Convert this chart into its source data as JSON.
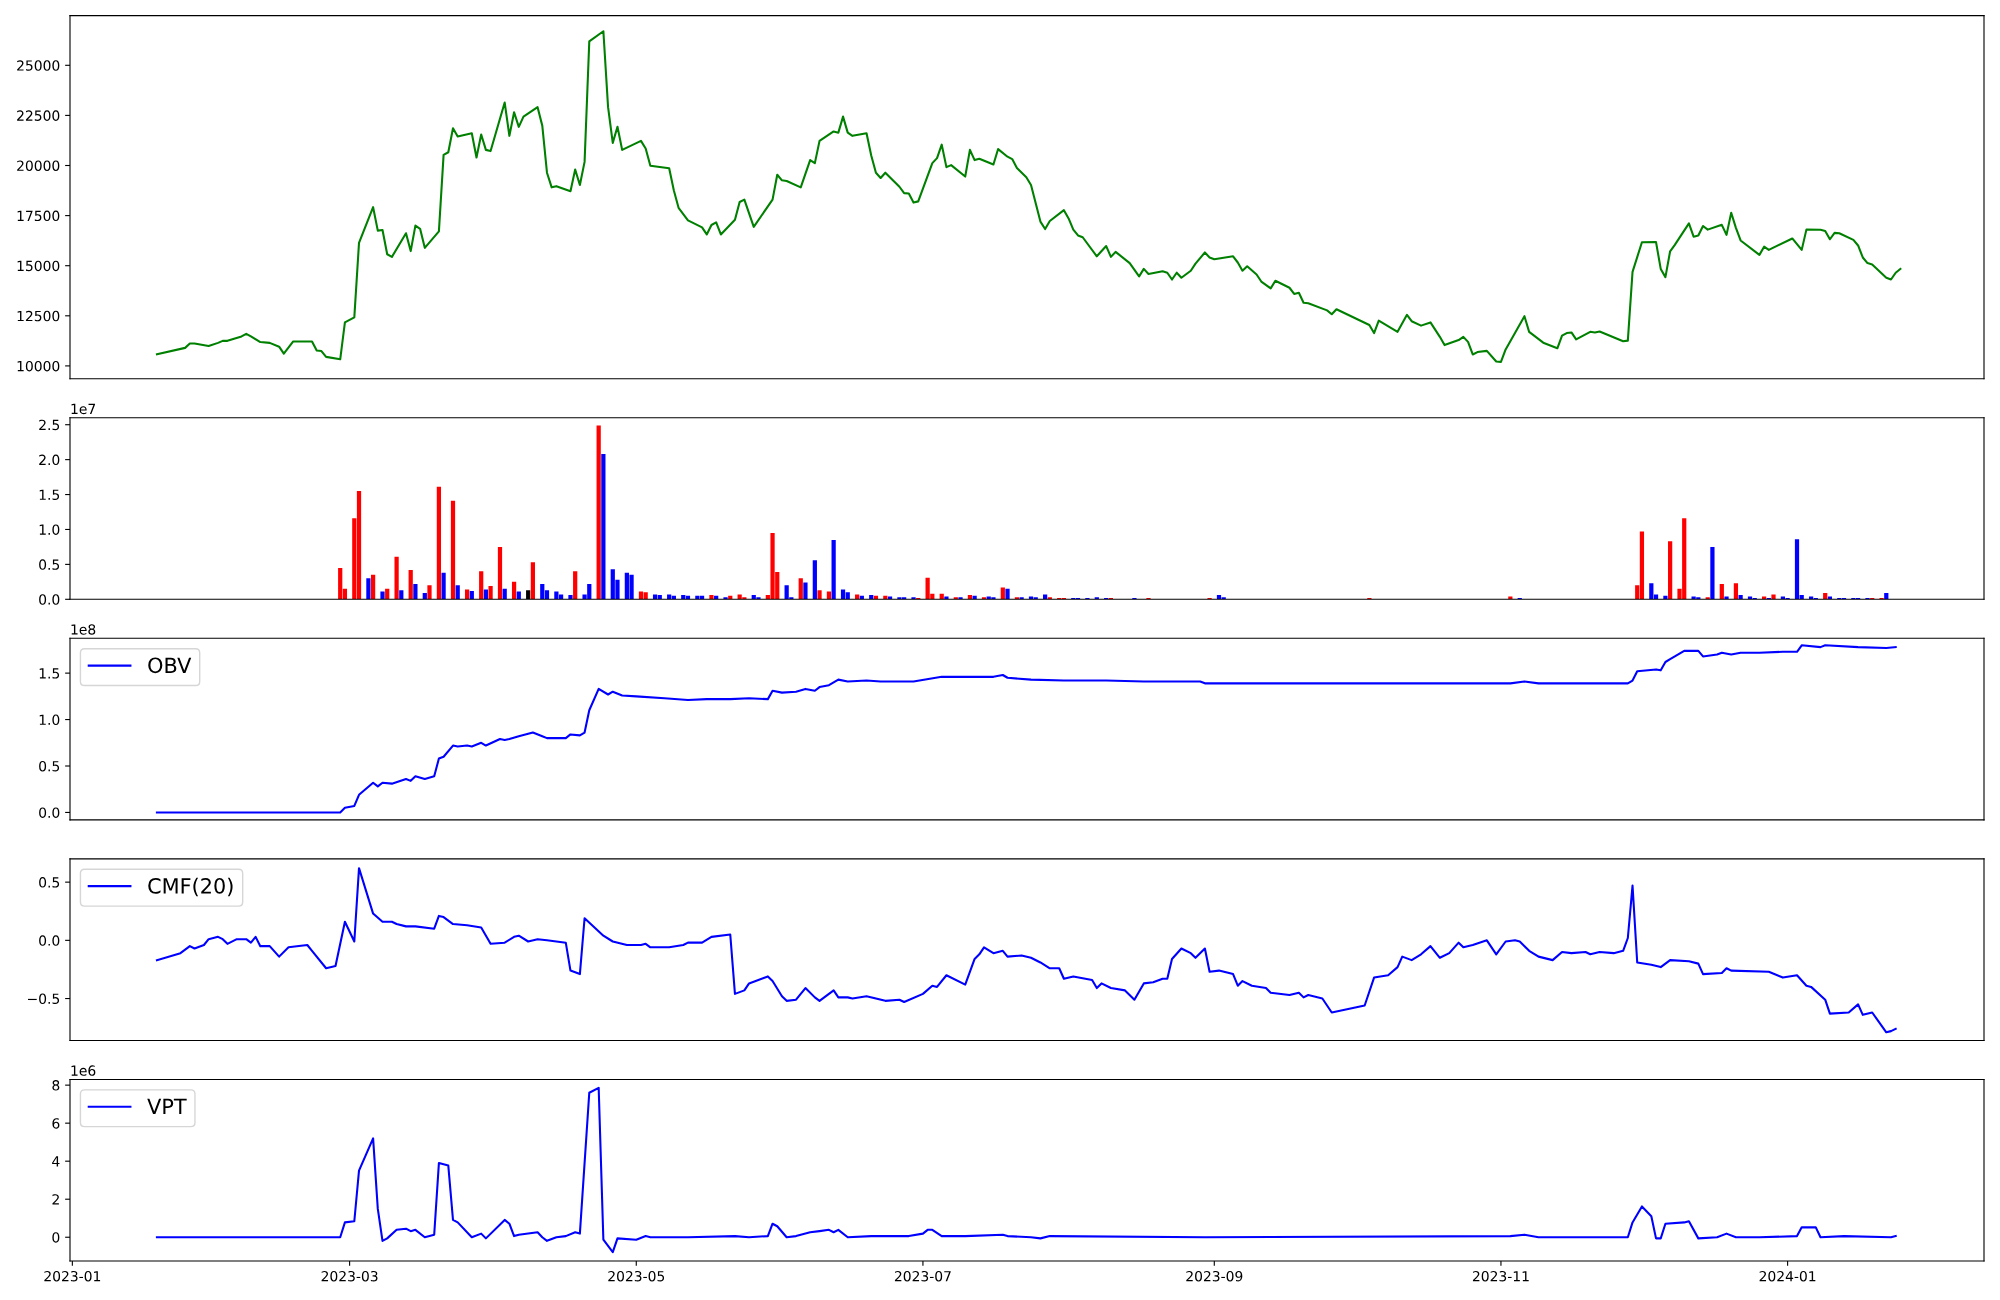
{
  "chart_data": [
    {
      "type": "line",
      "xlim": [
        "2022-12-31T12:00",
        "2024-02-11T19:00"
      ],
      "ylim": [
        9360,
        27480
      ],
      "tick_labels": "y",
      "legend": false,
      "yticks": [
        10000,
        12500,
        15000,
        17500,
        20000,
        22500,
        25000
      ],
      "color": "#008000",
      "x": [
        "2023-01-19",
        "2023-01-25",
        "2023-01-26",
        "2023-01-27",
        "2023-01-30",
        "2023-02-01",
        "2023-02-02",
        "2023-02-03",
        "2023-02-06",
        "2023-02-07",
        "2023-02-08",
        "2023-02-10",
        "2023-02-12",
        "2023-02-14",
        "2023-02-15",
        "2023-02-17",
        "2023-02-21",
        "2023-02-22",
        "2023-02-23",
        "2023-02-24",
        "2023-02-27",
        "2023-02-28",
        "2023-03-02",
        "2023-03-03",
        "2023-03-06",
        "2023-03-07",
        "2023-03-08",
        "2023-03-09",
        "2023-03-10",
        "2023-03-13",
        "2023-03-14",
        "2023-03-15",
        "2023-03-16",
        "2023-03-17",
        "2023-03-20",
        "2023-03-21",
        "2023-03-22",
        "2023-03-23",
        "2023-03-24",
        "2023-03-27",
        "2023-03-28",
        "2023-03-29",
        "2023-03-30",
        "2023-03-31",
        "2023-04-03",
        "2023-04-04",
        "2023-04-05",
        "2023-04-06",
        "2023-04-07",
        "2023-04-10",
        "2023-04-11",
        "2023-04-12",
        "2023-04-13",
        "2023-04-14",
        "2023-04-17",
        "2023-04-18",
        "2023-04-19",
        "2023-04-20",
        "2023-04-21",
        "2023-04-24",
        "2023-04-25",
        "2023-04-26",
        "2023-04-27",
        "2023-04-28",
        "2023-05-02",
        "2023-05-03",
        "2023-05-04",
        "2023-05-08",
        "2023-05-09",
        "2023-05-10",
        "2023-05-12",
        "2023-05-15",
        "2023-05-16",
        "2023-05-17",
        "2023-05-18",
        "2023-05-19",
        "2023-05-22",
        "2023-05-23",
        "2023-05-24",
        "2023-05-26",
        "2023-05-30",
        "2023-05-31",
        "2023-06-01",
        "2023-06-02",
        "2023-06-05",
        "2023-06-07",
        "2023-06-08",
        "2023-06-09",
        "2023-06-12",
        "2023-06-13",
        "2023-06-14",
        "2023-06-15",
        "2023-06-16",
        "2023-06-19",
        "2023-06-20",
        "2023-06-21",
        "2023-06-22",
        "2023-06-23",
        "2023-06-26",
        "2023-06-27",
        "2023-06-28",
        "2023-06-29",
        "2023-06-30",
        "2023-07-03",
        "2023-07-04",
        "2023-07-05",
        "2023-07-06",
        "2023-07-07",
        "2023-07-10",
        "2023-07-11",
        "2023-07-12",
        "2023-07-13",
        "2023-07-16",
        "2023-07-17",
        "2023-07-19",
        "2023-07-20",
        "2023-07-21",
        "2023-07-23",
        "2023-07-24",
        "2023-07-26",
        "2023-07-27",
        "2023-07-28",
        "2023-07-31",
        "2023-08-01",
        "2023-08-02",
        "2023-08-03",
        "2023-08-04",
        "2023-08-07",
        "2023-08-09",
        "2023-08-10",
        "2023-08-11",
        "2023-08-14",
        "2023-08-16",
        "2023-08-17",
        "2023-08-18",
        "2023-08-21",
        "2023-08-22",
        "2023-08-23",
        "2023-08-24",
        "2023-08-25",
        "2023-08-27",
        "2023-08-28",
        "2023-08-30",
        "2023-08-31",
        "2023-09-01",
        "2023-09-05",
        "2023-09-06",
        "2023-09-07",
        "2023-09-08",
        "2023-09-10",
        "2023-09-11",
        "2023-09-13",
        "2023-09-14",
        "2023-09-17",
        "2023-09-18",
        "2023-09-19",
        "2023-09-20",
        "2023-09-21",
        "2023-09-25",
        "2023-09-26",
        "2023-09-27",
        "2023-10-04",
        "2023-10-05",
        "2023-10-06",
        "2023-10-10",
        "2023-10-12",
        "2023-10-13",
        "2023-10-15",
        "2023-10-17",
        "2023-10-19",
        "2023-10-20",
        "2023-10-23",
        "2023-10-24",
        "2023-10-25",
        "2023-10-26",
        "2023-10-27",
        "2023-10-29",
        "2023-10-31",
        "2023-11-01",
        "2023-11-02",
        "2023-11-06",
        "2023-11-07",
        "2023-11-10",
        "2023-11-13",
        "2023-11-14",
        "2023-11-15",
        "2023-11-16",
        "2023-11-17",
        "2023-11-20",
        "2023-11-21",
        "2023-11-22",
        "2023-11-27",
        "2023-11-28",
        "2023-11-29",
        "2023-12-01",
        "2023-12-04",
        "2023-12-05",
        "2023-12-06",
        "2023-12-07",
        "2023-12-08",
        "2023-12-11",
        "2023-12-12",
        "2023-12-13",
        "2023-12-14",
        "2023-12-15",
        "2023-12-18",
        "2023-12-19",
        "2023-12-20",
        "2023-12-21",
        "2023-12-22",
        "2023-12-26",
        "2023-12-27",
        "2023-12-28",
        "2024-01-02",
        "2024-01-04",
        "2024-01-05",
        "2024-01-08",
        "2024-01-09",
        "2024-01-10",
        "2024-01-11",
        "2024-01-12",
        "2024-01-15",
        "2024-01-16",
        "2024-01-17",
        "2024-01-18",
        "2024-01-19",
        "2024-01-22",
        "2024-01-23",
        "2024-01-24",
        "2024-01-25"
      ],
      "values": [
        10580,
        10900,
        11120,
        11120,
        10990,
        11150,
        11250,
        11250,
        11470,
        11600,
        11470,
        11190,
        11150,
        10960,
        10610,
        11220,
        11220,
        10770,
        10740,
        10450,
        10330,
        12170,
        12420,
        16140,
        17920,
        16750,
        16780,
        15570,
        15440,
        16620,
        15730,
        17000,
        16840,
        15890,
        16710,
        20530,
        20660,
        21860,
        21450,
        21610,
        20400,
        21550,
        20780,
        20720,
        23140,
        21480,
        22660,
        21930,
        22440,
        22910,
        21990,
        19640,
        18910,
        18970,
        18720,
        19800,
        19030,
        20180,
        26190,
        26700,
        22910,
        21130,
        21930,
        20780,
        21230,
        20850,
        19990,
        19860,
        18750,
        17890,
        17260,
        16910,
        16560,
        17030,
        17160,
        16560,
        17290,
        18180,
        18300,
        16940,
        18300,
        19540,
        19260,
        19230,
        18910,
        20270,
        20120,
        21230,
        21700,
        21640,
        22440,
        21640,
        21480,
        21610,
        20500,
        19640,
        19380,
        19640,
        18940,
        18620,
        18600,
        18150,
        18210,
        20120,
        20370,
        21040,
        19920,
        20020,
        19450,
        20780,
        20270,
        20340,
        20050,
        20820,
        20440,
        20320,
        19880,
        19410,
        19030,
        17200,
        16830,
        17230,
        17770,
        17360,
        16800,
        16510,
        16420,
        15470,
        15980,
        15440,
        15690,
        15130,
        14470,
        14840,
        14590,
        14720,
        14650,
        14310,
        14650,
        14400,
        14750,
        15100,
        15660,
        15410,
        15320,
        15470,
        15160,
        14750,
        14970,
        14560,
        14210,
        13870,
        14250,
        13900,
        13590,
        13650,
        13150,
        13130,
        12770,
        12580,
        12830,
        12040,
        11640,
        12260,
        11700,
        12550,
        12230,
        12010,
        12170,
        11450,
        11040,
        11290,
        11450,
        11200,
        10570,
        10690,
        10750,
        10220,
        10200,
        10820,
        12480,
        11700,
        11160,
        10880,
        11510,
        11640,
        11670,
        11320,
        11700,
        11670,
        11720,
        11230,
        11260,
        14690,
        16170,
        16180,
        14840,
        14430,
        15720,
        16040,
        17110,
        16450,
        16510,
        16980,
        16800,
        17040,
        16540,
        17640,
        16890,
        16260,
        15540,
        15950,
        15790,
        16360,
        15790,
        16800,
        16790,
        16730,
        16320,
        16640,
        16620,
        16290,
        16010,
        15410,
        15130,
        15060,
        14400,
        14310,
        14650,
        14840
      ]
    },
    {
      "type": "bar",
      "xlim": [
        "2022-12-31T12:00",
        "2024-02-11T19:00"
      ],
      "ylim": [
        0,
        2.6
      ],
      "tick_labels": "y",
      "legend": false,
      "yticks": [
        {
          "value": 0,
          "label": "0.0"
        },
        0.5,
        {
          "value": 1,
          "label": "1.0"
        },
        1.5,
        {
          "value": 2,
          "label": "2.0"
        },
        2.5
      ],
      "annotations": [
        "1e7"
      ],
      "x": [
        "2023-02-27",
        "2023-02-28",
        "2023-03-02",
        "2023-03-03",
        "2023-03-05",
        "2023-03-06",
        "2023-03-08",
        "2023-03-09",
        "2023-03-11",
        "2023-03-12",
        "2023-03-14",
        "2023-03-15",
        "2023-03-17",
        "2023-03-18",
        "2023-03-20",
        "2023-03-21",
        "2023-03-23",
        "2023-03-24",
        "2023-03-26",
        "2023-03-27",
        "2023-03-29",
        "2023-03-30",
        "2023-03-31",
        "2023-04-02",
        "2023-04-03",
        "2023-04-05",
        "2023-04-06",
        "2023-04-08",
        "2023-04-09",
        "2023-04-11",
        "2023-04-12",
        "2023-04-14",
        "2023-04-15",
        "2023-04-17",
        "2023-04-18",
        "2023-04-20",
        "2023-04-21",
        "2023-04-23",
        "2023-04-24",
        "2023-04-26",
        "2023-04-27",
        "2023-04-29",
        "2023-04-30",
        "2023-05-02",
        "2023-05-03",
        "2023-05-05",
        "2023-05-06",
        "2023-05-08",
        "2023-05-09",
        "2023-05-11",
        "2023-05-12",
        "2023-05-14",
        "2023-05-15",
        "2023-05-17",
        "2023-05-18",
        "2023-05-20",
        "2023-05-21",
        "2023-05-23",
        "2023-05-24",
        "2023-05-26",
        "2023-05-27",
        "2023-05-29",
        "2023-05-30",
        "2023-05-31",
        "2023-06-02",
        "2023-06-03",
        "2023-06-05",
        "2023-06-06",
        "2023-06-08",
        "2023-06-09",
        "2023-06-11",
        "2023-06-12",
        "2023-06-14",
        "2023-06-15",
        "2023-06-17",
        "2023-06-18",
        "2023-06-20",
        "2023-06-21",
        "2023-06-23",
        "2023-06-24",
        "2023-06-26",
        "2023-06-27",
        "2023-06-29",
        "2023-06-30",
        "2023-07-02",
        "2023-07-03",
        "2023-07-05",
        "2023-07-06",
        "2023-07-08",
        "2023-07-09",
        "2023-07-11",
        "2023-07-12",
        "2023-07-14",
        "2023-07-15",
        "2023-07-16",
        "2023-07-18",
        "2023-07-19",
        "2023-07-21",
        "2023-07-22",
        "2023-07-24",
        "2023-07-25",
        "2023-07-27",
        "2023-07-28",
        "2023-07-30",
        "2023-07-31",
        "2023-08-02",
        "2023-08-03",
        "2023-08-05",
        "2023-08-07",
        "2023-08-09",
        "2023-08-10",
        "2023-08-15",
        "2023-08-18",
        "2023-08-31",
        "2023-09-02",
        "2023-09-03",
        "2023-10-04",
        "2023-11-03",
        "2023-11-05",
        "2023-11-30",
        "2023-12-01",
        "2023-12-03",
        "2023-12-04",
        "2023-12-06",
        "2023-12-07",
        "2023-12-09",
        "2023-12-10",
        "2023-12-12",
        "2023-12-13",
        "2023-12-15",
        "2023-12-16",
        "2023-12-18",
        "2023-12-19",
        "2023-12-21",
        "2023-12-22",
        "2023-12-24",
        "2023-12-25",
        "2023-12-27",
        "2023-12-28",
        "2023-12-29",
        "2023-12-31",
        "2024-01-01",
        "2024-01-03",
        "2024-01-04",
        "2024-01-06",
        "2024-01-07",
        "2024-01-09",
        "2024-01-10",
        "2024-01-12",
        "2024-01-13",
        "2024-01-15",
        "2024-01-16",
        "2024-01-18",
        "2024-01-19",
        "2024-01-21",
        "2024-01-22"
      ],
      "values": [
        0.45,
        0.15,
        1.16,
        1.55,
        0.3,
        0.35,
        0.11,
        0.15,
        0.61,
        0.13,
        0.42,
        0.22,
        0.09,
        0.2,
        1.61,
        0.38,
        1.41,
        0.2,
        0.14,
        0.12,
        0.4,
        0.14,
        0.19,
        0.75,
        0.15,
        0.25,
        0.11,
        0.13,
        0.53,
        0.22,
        0.13,
        0.11,
        0.07,
        0.06,
        0.4,
        0.07,
        0.22,
        2.49,
        2.08,
        0.43,
        0.28,
        0.38,
        0.35,
        0.11,
        0.1,
        0.07,
        0.06,
        0.07,
        0.05,
        0.06,
        0.05,
        0.05,
        0.05,
        0.06,
        0.05,
        0.03,
        0.05,
        0.07,
        0.03,
        0.06,
        0.03,
        0.06,
        0.95,
        0.39,
        0.2,
        0.03,
        0.3,
        0.24,
        0.56,
        0.13,
        0.11,
        0.85,
        0.14,
        0.1,
        0.07,
        0.05,
        0.06,
        0.05,
        0.05,
        0.04,
        0.03,
        0.03,
        0.03,
        0.02,
        0.31,
        0.08,
        0.08,
        0.04,
        0.03,
        0.03,
        0.06,
        0.05,
        0.03,
        0.04,
        0.03,
        0.17,
        0.15,
        0.03,
        0.03,
        0.04,
        0.03,
        0.07,
        0.03,
        0.02,
        0.02,
        0.02,
        0.02,
        0.02,
        0.03,
        0.02,
        0.02,
        0.02,
        0.02,
        0.02,
        0.06,
        0.03,
        0.02,
        0.04,
        0.02,
        0.2,
        0.97,
        0.23,
        0.07,
        0.05,
        0.83,
        0.15,
        1.16,
        0.04,
        0.03,
        0.03,
        0.75,
        0.22,
        0.04,
        0.23,
        0.06,
        0.04,
        0.02,
        0.04,
        0.02,
        0.07,
        0.04,
        0.02,
        0.86,
        0.06,
        0.04,
        0.02,
        0.09,
        0.04,
        0.02,
        0.02,
        0.02,
        0.02,
        0.02,
        0.02,
        0.02,
        0.09
      ],
      "colors": [
        "#ff0000",
        "#ff0000",
        "#ff0000",
        "#ff0000",
        "#0000ff",
        "#ff0000",
        "#0000ff",
        "#ff0000",
        "#ff0000",
        "#0000ff",
        "#ff0000",
        "#0000ff",
        "#0000ff",
        "#ff0000",
        "#ff0000",
        "#0000ff",
        "#ff0000",
        "#0000ff",
        "#ff0000",
        "#0000ff",
        "#ff0000",
        "#0000ff",
        "#ff0000",
        "#ff0000",
        "#0000ff",
        "#ff0000",
        "#0000ff",
        "#000000",
        "#ff0000",
        "#0000ff",
        "#0000ff",
        "#0000ff",
        "#0000ff",
        "#0000ff",
        "#ff0000",
        "#0000ff",
        "#0000ff",
        "#ff0000",
        "#0000ff",
        "#0000ff",
        "#0000ff",
        "#0000ff",
        "#0000ff",
        "#ff0000",
        "#ff0000",
        "#0000ff",
        "#0000ff",
        "#0000ff",
        "#0000ff",
        "#0000ff",
        "#0000ff",
        "#0000ff",
        "#0000ff",
        "#ff0000",
        "#0000ff",
        "#0000ff",
        "#ff0000",
        "#ff0000",
        "#ff0000",
        "#0000ff",
        "#0000ff",
        "#ff0000",
        "#ff0000",
        "#ff0000",
        "#0000ff",
        "#0000ff",
        "#ff0000",
        "#0000ff",
        "#0000ff",
        "#ff0000",
        "#ff0000",
        "#0000ff",
        "#0000ff",
        "#0000ff",
        "#ff0000",
        "#0000ff",
        "#0000ff",
        "#ff0000",
        "#ff0000",
        "#0000ff",
        "#0000ff",
        "#0000ff",
        "#0000ff",
        "#ff0000",
        "#ff0000",
        "#ff0000",
        "#ff0000",
        "#0000ff",
        "#ff0000",
        "#0000ff",
        "#ff0000",
        "#0000ff",
        "#ff0000",
        "#0000ff",
        "#0000ff",
        "#ff0000",
        "#0000ff",
        "#ff0000",
        "#0000ff",
        "#0000ff",
        "#0000ff",
        "#0000ff",
        "#ff0000",
        "#ff0000",
        "#ff0000",
        "#0000ff",
        "#0000ff",
        "#0000ff",
        "#0000ff",
        "#0000ff",
        "#ff0000",
        "#0000ff",
        "#ff0000",
        "#ff0000",
        "#0000ff",
        "#0000ff",
        "#ff0000",
        "#ff0000",
        "#0000ff",
        "#ff0000",
        "#ff0000",
        "#0000ff",
        "#0000ff",
        "#0000ff",
        "#ff0000",
        "#ff0000",
        "#ff0000",
        "#0000ff",
        "#0000ff",
        "#ff0000",
        "#0000ff",
        "#ff0000",
        "#0000ff",
        "#ff0000",
        "#0000ff",
        "#0000ff",
        "#0000ff",
        "#ff0000",
        "#0000ff",
        "#ff0000",
        "#0000ff",
        "#0000ff",
        "#0000ff",
        "#0000ff",
        "#0000ff",
        "#0000ff",
        "#ff0000",
        "#0000ff",
        "#0000ff",
        "#0000ff",
        "#0000ff",
        "#0000ff",
        "#0000ff",
        "#ff0000",
        "#ff0000",
        "#0000ff"
      ]
    },
    {
      "type": "line",
      "xlim": [
        "2022-12-31T12:00",
        "2024-02-11T19:00"
      ],
      "ylim": [
        -0.08,
        1.875
      ],
      "tick_labels": "y",
      "legend": "top left",
      "yticks": [
        {
          "value": 0,
          "label": "0.0"
        },
        0.5,
        {
          "value": 1,
          "label": "1.0"
        },
        1.5
      ],
      "annotations": [
        "1e8"
      ],
      "x": [
        "2023-01-19",
        "2023-02-27",
        "2023-02-28",
        "2023-03-02",
        "2023-03-03",
        "2023-03-06",
        "2023-03-07",
        "2023-03-08",
        "2023-03-10",
        "2023-03-13",
        "2023-03-14",
        "2023-03-15",
        "2023-03-17",
        "2023-03-19",
        "2023-03-20",
        "2023-03-21",
        "2023-03-23",
        "2023-03-24",
        "2023-03-26",
        "2023-03-27",
        "2023-03-29",
        "2023-03-30",
        "2023-04-02",
        "2023-04-03",
        "2023-04-04",
        "2023-04-06",
        "2023-04-09",
        "2023-04-11",
        "2023-04-12",
        "2023-04-16",
        "2023-04-17",
        "2023-04-19",
        "2023-04-20",
        "2023-04-21",
        "2023-04-23",
        "2023-04-25",
        "2023-04-26",
        "2023-04-28",
        "2023-05-01",
        "2023-05-07",
        "2023-05-12",
        "2023-05-16",
        "2023-05-21",
        "2023-05-25",
        "2023-05-29",
        "2023-05-30",
        "2023-06-01",
        "2023-06-04",
        "2023-06-06",
        "2023-06-08",
        "2023-06-09",
        "2023-06-11",
        "2023-06-13",
        "2023-06-15",
        "2023-06-19",
        "2023-06-22",
        "2023-06-29",
        "2023-07-05",
        "2023-07-08",
        "2023-07-14",
        "2023-07-16",
        "2023-07-18",
        "2023-07-19",
        "2023-07-24",
        "2023-07-31",
        "2023-08-09",
        "2023-08-17",
        "2023-08-29",
        "2023-08-30",
        "2023-09-17",
        "2023-10-13",
        "2023-11-03",
        "2023-11-06",
        "2023-11-09",
        "2023-11-28",
        "2023-11-29",
        "2023-11-30",
        "2023-12-04",
        "2023-12-05",
        "2023-12-06",
        "2023-12-07",
        "2023-12-10",
        "2023-12-13",
        "2023-12-14",
        "2023-12-17",
        "2023-12-18",
        "2023-12-20",
        "2023-12-22",
        "2023-12-26",
        "2023-12-31",
        "2024-01-03",
        "2024-01-04",
        "2024-01-08",
        "2024-01-09",
        "2024-01-16",
        "2024-01-22",
        "2024-01-24"
      ],
      "series": [
        {
          "name": "OBV",
          "color": "#0000ff",
          "values": [
            0,
            0,
            0.05,
            0.07,
            0.19,
            0.32,
            0.28,
            0.32,
            0.31,
            0.36,
            0.34,
            0.39,
            0.36,
            0.39,
            0.58,
            0.6,
            0.72,
            0.71,
            0.72,
            0.71,
            0.75,
            0.72,
            0.79,
            0.78,
            0.79,
            0.82,
            0.86,
            0.82,
            0.8,
            0.8,
            0.84,
            0.83,
            0.86,
            1.1,
            1.33,
            1.27,
            1.3,
            1.26,
            1.25,
            1.23,
            1.21,
            1.22,
            1.22,
            1.23,
            1.22,
            1.31,
            1.29,
            1.3,
            1.33,
            1.31,
            1.35,
            1.37,
            1.43,
            1.41,
            1.42,
            1.41,
            1.41,
            1.46,
            1.46,
            1.46,
            1.46,
            1.48,
            1.45,
            1.43,
            1.42,
            1.42,
            1.41,
            1.41,
            1.39,
            1.39,
            1.39,
            1.39,
            1.41,
            1.39,
            1.39,
            1.42,
            1.52,
            1.54,
            1.53,
            1.62,
            1.65,
            1.74,
            1.74,
            1.68,
            1.7,
            1.72,
            1.7,
            1.72,
            1.72,
            1.73,
            1.73,
            1.8,
            1.78,
            1.8,
            1.78,
            1.77,
            1.78
          ]
        }
      ]
    },
    {
      "type": "line",
      "xlim": [
        "2022-12-31T12:00",
        "2024-02-11T19:00"
      ],
      "ylim": [
        -0.86,
        0.7
      ],
      "tick_labels": "y",
      "legend": "top left",
      "yticks": [
        {
          "value": -0.5,
          "label": "−0.5"
        },
        {
          "value": 0,
          "label": "0.0"
        },
        {
          "value": 0.5,
          "label": "0.5"
        }
      ],
      "x": [
        "2023-01-19",
        "2023-01-24",
        "2023-01-26",
        "2023-01-27",
        "2023-01-29",
        "2023-01-30",
        "2023-02-01",
        "2023-02-02",
        "2023-02-03",
        "2023-02-05",
        "2023-02-07",
        "2023-02-08",
        "2023-02-09",
        "2023-02-10",
        "2023-02-12",
        "2023-02-14",
        "2023-02-16",
        "2023-02-20",
        "2023-02-21",
        "2023-02-24",
        "2023-02-26",
        "2023-02-28",
        "2023-03-02",
        "2023-03-03",
        "2023-03-06",
        "2023-03-08",
        "2023-03-10",
        "2023-03-11",
        "2023-03-13",
        "2023-03-15",
        "2023-03-19",
        "2023-03-20",
        "2023-03-21",
        "2023-03-23",
        "2023-03-26",
        "2023-03-29",
        "2023-03-31",
        "2023-04-03",
        "2023-04-05",
        "2023-04-06",
        "2023-04-08",
        "2023-04-10",
        "2023-04-12",
        "2023-04-16",
        "2023-04-17",
        "2023-04-19",
        "2023-04-20",
        "2023-04-24",
        "2023-04-26",
        "2023-04-29",
        "2023-05-02",
        "2023-05-03",
        "2023-05-04",
        "2023-05-08",
        "2023-05-11",
        "2023-05-12",
        "2023-05-15",
        "2023-05-17",
        "2023-05-21",
        "2023-05-22",
        "2023-05-24",
        "2023-05-25",
        "2023-05-29",
        "2023-05-30",
        "2023-06-01",
        "2023-06-02",
        "2023-06-04",
        "2023-06-06",
        "2023-06-08",
        "2023-06-09",
        "2023-06-12",
        "2023-06-13",
        "2023-06-15",
        "2023-06-16",
        "2023-06-19",
        "2023-06-23",
        "2023-06-26",
        "2023-06-27",
        "2023-07-01",
        "2023-07-03",
        "2023-07-04",
        "2023-07-06",
        "2023-07-10",
        "2023-07-12",
        "2023-07-13",
        "2023-07-14",
        "2023-07-16",
        "2023-07-18",
        "2023-07-19",
        "2023-07-22",
        "2023-07-24",
        "2023-07-26",
        "2023-07-28",
        "2023-07-30",
        "2023-07-31",
        "2023-08-02",
        "2023-08-06",
        "2023-08-07",
        "2023-08-08",
        "2023-08-10",
        "2023-08-13",
        "2023-08-15",
        "2023-08-17",
        "2023-08-19",
        "2023-08-21",
        "2023-08-22",
        "2023-08-23",
        "2023-08-25",
        "2023-08-27",
        "2023-08-28",
        "2023-08-30",
        "2023-08-31",
        "2023-09-02",
        "2023-09-05",
        "2023-09-06",
        "2023-09-07",
        "2023-09-09",
        "2023-09-12",
        "2023-09-13",
        "2023-09-17",
        "2023-09-19",
        "2023-09-20",
        "2023-09-21",
        "2023-09-24",
        "2023-09-26",
        "2023-10-03",
        "2023-10-05",
        "2023-10-08",
        "2023-10-10",
        "2023-10-11",
        "2023-10-13",
        "2023-10-15",
        "2023-10-17",
        "2023-10-19",
        "2023-10-21",
        "2023-10-23",
        "2023-10-24",
        "2023-10-26",
        "2023-10-29",
        "2023-10-31",
        "2023-11-02",
        "2023-11-04",
        "2023-11-05",
        "2023-11-07",
        "2023-11-09",
        "2023-11-12",
        "2023-11-14",
        "2023-11-16",
        "2023-11-19",
        "2023-11-20",
        "2023-11-22",
        "2023-11-25",
        "2023-11-27",
        "2023-11-28",
        "2023-11-29",
        "2023-11-30",
        "2023-12-03",
        "2023-12-05",
        "2023-12-07",
        "2023-12-11",
        "2023-12-13",
        "2023-12-14",
        "2023-12-18",
        "2023-12-19",
        "2023-12-20",
        "2023-12-28",
        "2023-12-31",
        "2024-01-03",
        "2024-01-05",
        "2024-01-06",
        "2024-01-09",
        "2024-01-10",
        "2024-01-14",
        "2024-01-16",
        "2024-01-17",
        "2024-01-19",
        "2024-01-22",
        "2024-01-23",
        "2024-01-24"
      ],
      "series": [
        {
          "name": "CMF(20)",
          "color": "#0000ff",
          "values": [
            -0.17,
            -0.11,
            -0.05,
            -0.07,
            -0.04,
            0.01,
            0.03,
            0.01,
            -0.03,
            0.01,
            0.01,
            -0.02,
            0.03,
            -0.05,
            -0.05,
            -0.14,
            -0.06,
            -0.04,
            -0.09,
            -0.24,
            -0.22,
            0.16,
            -0.01,
            0.62,
            0.23,
            0.16,
            0.16,
            0.14,
            0.12,
            0.12,
            0.1,
            0.21,
            0.2,
            0.14,
            0.13,
            0.11,
            -0.03,
            -0.02,
            0.03,
            0.04,
            -0.01,
            0.01,
            0.0,
            -0.02,
            -0.26,
            -0.29,
            0.19,
            0.04,
            -0.01,
            -0.04,
            -0.04,
            -0.03,
            -0.06,
            -0.06,
            -0.04,
            -0.02,
            -0.02,
            0.03,
            0.05,
            -0.46,
            -0.43,
            -0.37,
            -0.31,
            -0.35,
            -0.48,
            -0.52,
            -0.51,
            -0.41,
            -0.49,
            -0.52,
            -0.43,
            -0.49,
            -0.49,
            -0.5,
            -0.48,
            -0.52,
            -0.51,
            -0.53,
            -0.46,
            -0.39,
            -0.4,
            -0.3,
            -0.38,
            -0.16,
            -0.12,
            -0.06,
            -0.11,
            -0.09,
            -0.14,
            -0.13,
            -0.15,
            -0.19,
            -0.24,
            -0.24,
            -0.33,
            -0.31,
            -0.34,
            -0.41,
            -0.37,
            -0.41,
            -0.43,
            -0.51,
            -0.37,
            -0.36,
            -0.33,
            -0.33,
            -0.16,
            -0.07,
            -0.11,
            -0.15,
            -0.07,
            -0.27,
            -0.26,
            -0.29,
            -0.39,
            -0.35,
            -0.39,
            -0.41,
            -0.45,
            -0.47,
            -0.45,
            -0.49,
            -0.47,
            -0.5,
            -0.62,
            -0.56,
            -0.32,
            -0.3,
            -0.23,
            -0.14,
            -0.17,
            -0.12,
            -0.05,
            -0.15,
            -0.11,
            -0.02,
            -0.06,
            -0.04,
            0.0,
            -0.12,
            -0.01,
            0.0,
            -0.01,
            -0.09,
            -0.14,
            -0.17,
            -0.1,
            -0.11,
            -0.1,
            -0.12,
            -0.1,
            -0.11,
            -0.09,
            0.02,
            0.47,
            -0.19,
            -0.21,
            -0.23,
            -0.17,
            -0.18,
            -0.2,
            -0.29,
            -0.28,
            -0.24,
            -0.26,
            -0.27,
            -0.32,
            -0.3,
            -0.39,
            -0.4,
            -0.51,
            -0.63,
            -0.62,
            -0.55,
            -0.64,
            -0.62,
            -0.79,
            -0.78,
            -0.76
          ]
        }
      ]
    },
    {
      "type": "line",
      "xlim": [
        "2022-12-31T12:00",
        "2024-02-11T19:00"
      ],
      "ylim": [
        -1.25,
        8.3
      ],
      "legend": "top left",
      "xticks": [
        {
          "value": "2023-01-01",
          "label": "2023-01"
        },
        {
          "value": "2023-03-01",
          "label": "2023-03"
        },
        {
          "value": "2023-05-01",
          "label": "2023-05"
        },
        {
          "value": "2023-07-01",
          "label": "2023-07"
        },
        {
          "value": "2023-09-01",
          "label": "2023-09"
        },
        {
          "value": "2023-11-01",
          "label": "2023-11"
        },
        {
          "value": "2024-01-01",
          "label": "2024-01"
        }
      ],
      "yticks": [
        0,
        2,
        4,
        6,
        8
      ],
      "annotations": [
        "1e6"
      ],
      "x": [
        "2023-01-19",
        "2023-02-27",
        "2023-02-28",
        "2023-03-02",
        "2023-03-03",
        "2023-03-06",
        "2023-03-07",
        "2023-03-08",
        "2023-03-09",
        "2023-03-11",
        "2023-03-13",
        "2023-03-14",
        "2023-03-15",
        "2023-03-17",
        "2023-03-19",
        "2023-03-20",
        "2023-03-22",
        "2023-03-23",
        "2023-03-24",
        "2023-03-27",
        "2023-03-29",
        "2023-03-30",
        "2023-04-03",
        "2023-04-04",
        "2023-04-05",
        "2023-04-06",
        "2023-04-10",
        "2023-04-11",
        "2023-04-12",
        "2023-04-14",
        "2023-04-16",
        "2023-04-18",
        "2023-04-19",
        "2023-04-21",
        "2023-04-23",
        "2023-04-24",
        "2023-04-26",
        "2023-04-27",
        "2023-05-01",
        "2023-05-03",
        "2023-05-04",
        "2023-05-12",
        "2023-05-22",
        "2023-05-25",
        "2023-05-29",
        "2023-05-30",
        "2023-05-31",
        "2023-06-02",
        "2023-06-04",
        "2023-06-07",
        "2023-06-09",
        "2023-06-11",
        "2023-06-12",
        "2023-06-13",
        "2023-06-15",
        "2023-06-20",
        "2023-06-28",
        "2023-07-01",
        "2023-07-02",
        "2023-07-03",
        "2023-07-05",
        "2023-07-10",
        "2023-07-18",
        "2023-07-19",
        "2023-07-24",
        "2023-07-26",
        "2023-07-28",
        "2023-08-30",
        "2023-11-03",
        "2023-11-06",
        "2023-11-09",
        "2023-11-28",
        "2023-11-29",
        "2023-12-01",
        "2023-12-03",
        "2023-12-04",
        "2023-12-05",
        "2023-12-06",
        "2023-12-10",
        "2023-12-11",
        "2023-12-13",
        "2023-12-17",
        "2023-12-19",
        "2023-12-21",
        "2023-12-26",
        "2024-01-03",
        "2024-01-04",
        "2024-01-07",
        "2024-01-08",
        "2024-01-13",
        "2024-01-23",
        "2024-01-24"
      ],
      "series": [
        {
          "name": "VPT",
          "color": "#0000ff",
          "values": [
            0,
            0,
            0.78,
            0.84,
            3.5,
            5.2,
            1.49,
            -0.19,
            -0.06,
            0.39,
            0.45,
            0.32,
            0.39,
            0,
            0.13,
            3.9,
            3.77,
            0.91,
            0.78,
            0,
            0.19,
            -0.06,
            0.91,
            0.71,
            0.06,
            0.13,
            0.26,
            0,
            -0.19,
            0,
            0.06,
            0.26,
            0.19,
            7.6,
            7.86,
            -0.13,
            -0.78,
            -0.06,
            -0.13,
            0.06,
            0,
            0,
            0.06,
            0,
            0.06,
            0.71,
            0.58,
            0,
            0.06,
            0.26,
            0.32,
            0.39,
            0.26,
            0.39,
            0,
            0.06,
            0.06,
            0.19,
            0.39,
            0.39,
            0.06,
            0.06,
            0.13,
            0.06,
            0,
            -0.06,
            0.06,
            0,
            0.06,
            0.13,
            0,
            0,
            0.78,
            1.62,
            1.1,
            -0.06,
            -0.06,
            0.71,
            0.78,
            0.84,
            -0.06,
            0,
            0.19,
            0,
            0,
            0.06,
            0.52,
            0.52,
            0,
            0.06,
            0,
            0.06
          ]
        }
      ]
    }
  ]
}
